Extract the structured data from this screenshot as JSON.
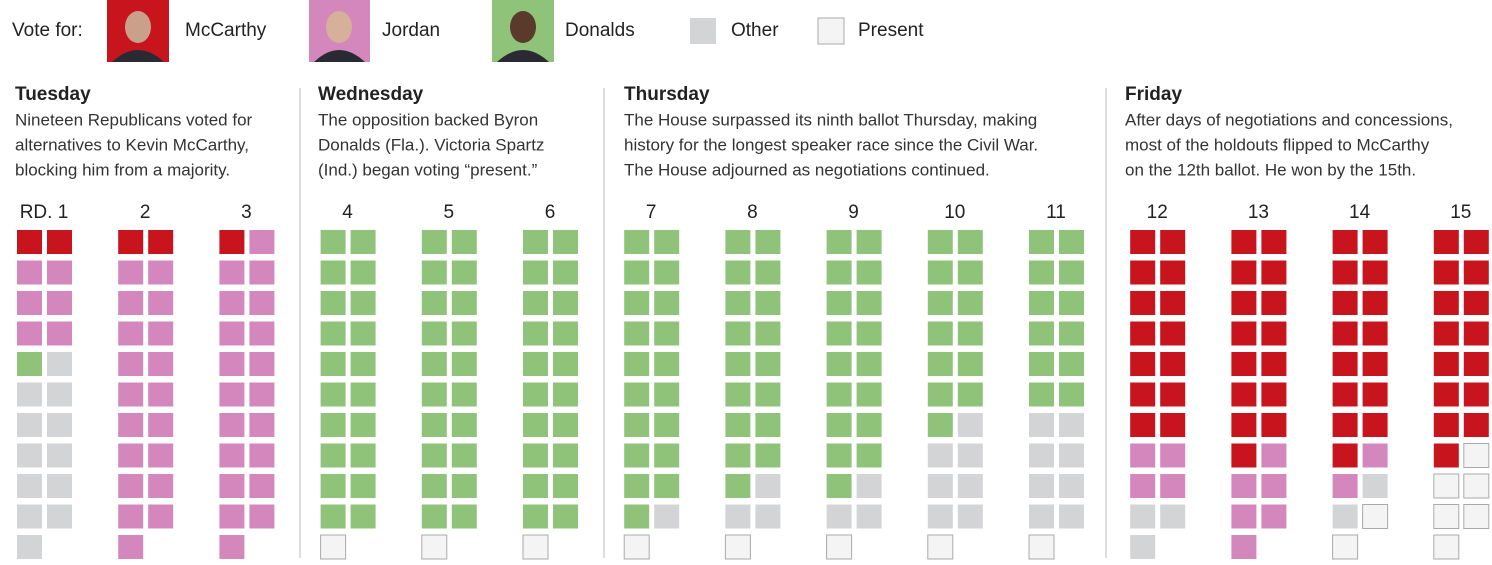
{
  "chart_data": {
    "type": "waffle",
    "legend_title": "Vote for:",
    "legend": [
      {
        "name": "McCarthy",
        "color": "#c8141c"
      },
      {
        "name": "Jordan",
        "color": "#d487bd"
      },
      {
        "name": "Donalds",
        "color": "#8fc37a"
      },
      {
        "name": "Other",
        "color": "#d3d4d6"
      },
      {
        "name": "Present",
        "color": "#f4f4f4"
      }
    ],
    "days": [
      {
        "name": "Tuesday",
        "text": [
          "Nineteen Republicans voted for",
          "alternatives to Kevin McCarthy,",
          "blocking him from a majority."
        ],
        "rounds": [
          {
            "label": "RD. 1",
            "counts": [
              2,
              6,
              1,
              12,
              0
            ]
          },
          {
            "label": "2",
            "counts": [
              2,
              19,
              0,
              0,
              0
            ]
          },
          {
            "label": "3",
            "counts": [
              1,
              20,
              0,
              0,
              0
            ]
          }
        ]
      },
      {
        "name": "Wednesday",
        "text": [
          "The opposition backed Byron",
          "Donalds (Fla.). Victoria Spartz",
          "(Ind.) began voting “present.”"
        ],
        "rounds": [
          {
            "label": "4",
            "counts": [
              0,
              0,
              20,
              0,
              1
            ]
          },
          {
            "label": "5",
            "counts": [
              0,
              0,
              20,
              0,
              1
            ]
          },
          {
            "label": "6",
            "counts": [
              0,
              0,
              20,
              0,
              1
            ]
          }
        ]
      },
      {
        "name": "Thursday",
        "text": [
          "The House surpassed its ninth ballot Thursday, making",
          "history for the longest speaker race since the Civil War.",
          "The House adjourned as negotiations continued."
        ],
        "rounds": [
          {
            "label": "7",
            "counts": [
              0,
              0,
              19,
              1,
              1
            ]
          },
          {
            "label": "8",
            "counts": [
              0,
              0,
              17,
              3,
              1
            ]
          },
          {
            "label": "9",
            "counts": [
              0,
              0,
              17,
              3,
              1
            ]
          },
          {
            "label": "10",
            "counts": [
              0,
              0,
              13,
              7,
              1
            ]
          },
          {
            "label": "11",
            "counts": [
              0,
              0,
              12,
              8,
              1
            ]
          }
        ]
      },
      {
        "name": "Friday",
        "text": [
          "After days of negotiations and concessions,",
          "most of the holdouts flipped to McCarthy",
          "on the 12th ballot. He won by the 15th."
        ],
        "rounds": [
          {
            "label": "12",
            "counts": [
              14,
              4,
              0,
              3,
              0
            ]
          },
          {
            "label": "13",
            "counts": [
              15,
              6,
              0,
              0,
              0
            ]
          },
          {
            "label": "14",
            "counts": [
              15,
              2,
              0,
              2,
              2
            ]
          },
          {
            "label": "15",
            "counts": [
              15,
              0,
              0,
              0,
              6
            ]
          }
        ]
      }
    ]
  }
}
